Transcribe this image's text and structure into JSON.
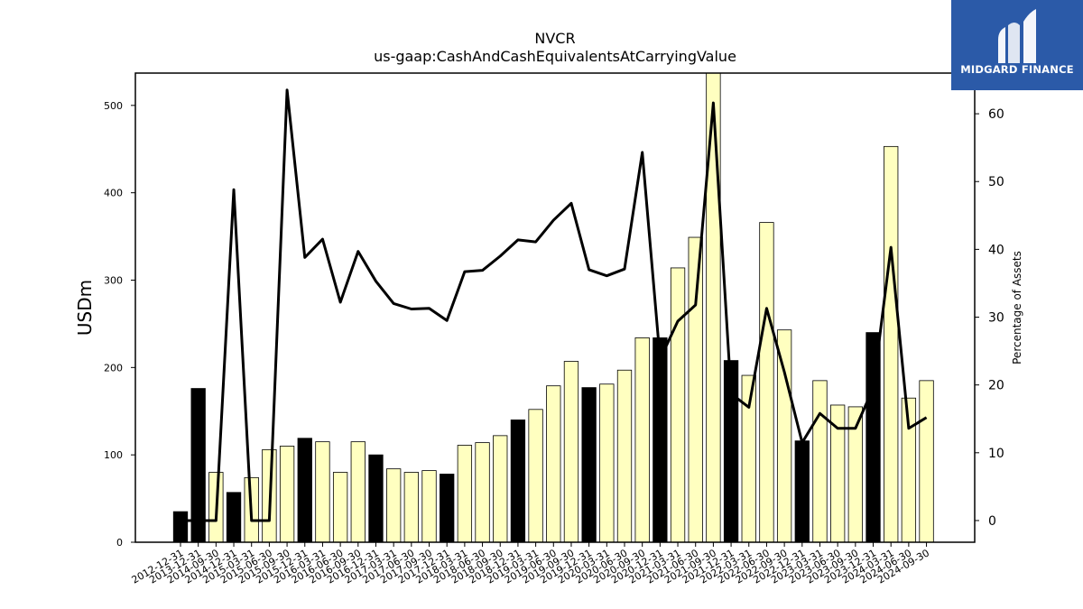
{
  "brand": {
    "name": "MIDGARD FINANCE",
    "logo_color": "#2b5aa8"
  },
  "chart_data": {
    "type": "bar",
    "title": "NVCR",
    "subtitle": "us-gaap:CashAndCashEquivalentsAtCarryingValue",
    "ylabel": "USDm",
    "y2label": "Percentage of Assets",
    "ylim": [
      0,
      537
    ],
    "y2lim": [
      -3.2,
      66
    ],
    "yticks": [
      0,
      100,
      200,
      300,
      400,
      500
    ],
    "y2ticks": [
      0,
      10,
      20,
      30,
      40,
      50,
      60
    ],
    "bar_colors": {
      "q4": "#000000",
      "other": "#ffffc0"
    },
    "line_color": "#000000",
    "categories": [
      "2012-12-31",
      "2013-12-31",
      "2014-09-30",
      "2014-12-31",
      "2015-03-31",
      "2015-06-30",
      "2015-09-30",
      "2015-12-31",
      "2016-03-31",
      "2016-06-30",
      "2016-09-30",
      "2016-12-31",
      "2017-03-31",
      "2017-06-30",
      "2017-09-30",
      "2017-12-31",
      "2018-03-31",
      "2018-06-30",
      "2018-09-30",
      "2018-12-31",
      "2019-03-31",
      "2019-06-30",
      "2019-09-30",
      "2019-12-31",
      "2020-03-31",
      "2020-06-30",
      "2020-09-30",
      "2020-12-31",
      "2021-03-31",
      "2021-06-30",
      "2021-09-30",
      "2021-12-31",
      "2022-03-31",
      "2022-06-30",
      "2022-09-30",
      "2022-12-31",
      "2023-03-31",
      "2023-06-30",
      "2023-09-30",
      "2023-12-31",
      "2024-03-31",
      "2024-06-30",
      "2024-09-30"
    ],
    "series": [
      {
        "type": "bar",
        "values": [
          35,
          176,
          80,
          57,
          74,
          106,
          110,
          119,
          115,
          80,
          115,
          100,
          84,
          80,
          82,
          78,
          111,
          114,
          122,
          140,
          152,
          179,
          207,
          177,
          181,
          197,
          234,
          234,
          314,
          349,
          537,
          208,
          191,
          366,
          243,
          116,
          185,
          157,
          155,
          240,
          453,
          165,
          185
        ]
      },
      {
        "type": "line",
        "axis": "right",
        "values": [
          0,
          0,
          0,
          48.8,
          0,
          0,
          63.5,
          38.8,
          41.5,
          32.2,
          39.7,
          35.3,
          32.0,
          31.2,
          31.3,
          29.5,
          36.7,
          36.9,
          39.0,
          41.4,
          41.1,
          44.3,
          46.8,
          37.0,
          36.1,
          37.1,
          54.3,
          23.8,
          29.4,
          31.8,
          61.6,
          18.7,
          16.7,
          31.3,
          21.9,
          11.5,
          15.8,
          13.6,
          13.6,
          19.5,
          40.3,
          13.6,
          15.2
        ]
      }
    ]
  }
}
